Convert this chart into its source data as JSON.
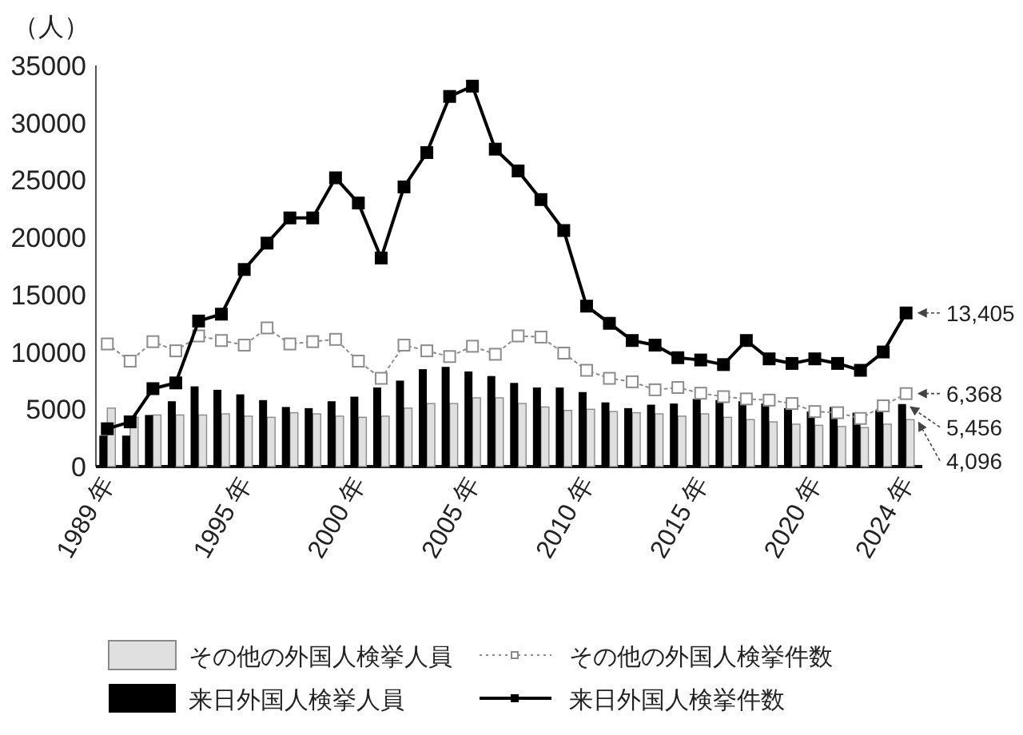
{
  "chart_data": {
    "type": "bar",
    "ylabel": "（人）",
    "categories": [
      "1989 年",
      null,
      null,
      null,
      null,
      null,
      "1995 年",
      null,
      null,
      null,
      null,
      "2000 年",
      null,
      null,
      null,
      null,
      "2005 年",
      null,
      null,
      null,
      null,
      "2010 年",
      null,
      null,
      null,
      null,
      "2015 年",
      null,
      null,
      null,
      null,
      "2020 年",
      null,
      null,
      null,
      "2024 年"
    ],
    "ylim": [
      0,
      35000
    ],
    "yticks": [
      0,
      5000,
      10000,
      15000,
      20000,
      25000,
      30000,
      35000
    ],
    "grid": false,
    "legend": "bottom",
    "series": [
      {
        "name": "その他の外国人検挙人員",
        "color": "#e0e0e0",
        "values": [
          5100,
          4300,
          4500,
          4500,
          4500,
          4600,
          4400,
          4300,
          4700,
          4600,
          4400,
          4300,
          4400,
          5100,
          5500,
          5500,
          6000,
          6000,
          5500,
          5200,
          4900,
          5000,
          4800,
          4700,
          4600,
          4400,
          4600,
          4300,
          4100,
          3900,
          3700,
          3600,
          3500,
          3400,
          3700,
          4096
        ],
        "value_labels": [
          null,
          null,
          null,
          null,
          null,
          null,
          null,
          null,
          null,
          null,
          null,
          null,
          null,
          null,
          null,
          null,
          null,
          null,
          null,
          null,
          null,
          null,
          null,
          null,
          null,
          null,
          null,
          null,
          null,
          null,
          null,
          null,
          null,
          null,
          null,
          "4,096"
        ]
      },
      {
        "name": "その他の外国人検挙件数",
        "type": "line",
        "color": "#8c8c8c",
        "marker": "square",
        "line_style": "dotted",
        "values": [
          10700,
          9200,
          10900,
          10100,
          11400,
          11000,
          10600,
          12100,
          10700,
          10900,
          11100,
          9200,
          7700,
          10600,
          10100,
          9600,
          10500,
          9800,
          11400,
          11300,
          9900,
          8400,
          7700,
          7400,
          6700,
          6900,
          6400,
          6100,
          5900,
          5800,
          5500,
          4800,
          4700,
          4200,
          5300,
          6368
        ],
        "value_labels": [
          null,
          null,
          null,
          null,
          null,
          null,
          null,
          null,
          null,
          null,
          null,
          null,
          null,
          null,
          null,
          null,
          null,
          null,
          null,
          null,
          null,
          null,
          null,
          null,
          null,
          null,
          null,
          null,
          null,
          null,
          null,
          null,
          null,
          null,
          null,
          "6,368"
        ]
      },
      {
        "name": "来日外国人検挙人員",
        "color": "#000000",
        "values": [
          2700,
          2700,
          4500,
          5700,
          7000,
          6700,
          6300,
          5800,
          5200,
          5100,
          5700,
          6100,
          6900,
          7500,
          8500,
          8700,
          8300,
          7900,
          7300,
          6900,
          6900,
          6500,
          5600,
          5100,
          5400,
          5500,
          5900,
          5800,
          5700,
          5500,
          5100,
          4800,
          5200,
          4700,
          4900,
          5456
        ],
        "value_labels": [
          null,
          null,
          null,
          null,
          null,
          null,
          null,
          null,
          null,
          null,
          null,
          null,
          null,
          null,
          null,
          null,
          null,
          null,
          null,
          null,
          null,
          null,
          null,
          null,
          null,
          null,
          null,
          null,
          null,
          null,
          null,
          null,
          null,
          null,
          null,
          "5,456"
        ]
      },
      {
        "name": "来日外国人検挙件数",
        "type": "line",
        "color": "#000000",
        "marker": "square",
        "line_style": "solid",
        "values": [
          3300,
          3900,
          6800,
          7300,
          12700,
          13300,
          17200,
          19500,
          21700,
          21700,
          25200,
          23000,
          18200,
          24400,
          27400,
          32300,
          33200,
          27700,
          25800,
          23300,
          20600,
          14000,
          12500,
          11000,
          10600,
          9500,
          9300,
          8900,
          11000,
          9400,
          9000,
          9400,
          9000,
          8400,
          10000,
          13405
        ],
        "value_labels": [
          null,
          null,
          null,
          null,
          null,
          null,
          null,
          null,
          null,
          null,
          null,
          null,
          null,
          null,
          null,
          null,
          null,
          null,
          null,
          null,
          null,
          null,
          null,
          null,
          null,
          null,
          null,
          null,
          null,
          null,
          null,
          null,
          null,
          null,
          null,
          "13,405"
        ]
      }
    ]
  }
}
